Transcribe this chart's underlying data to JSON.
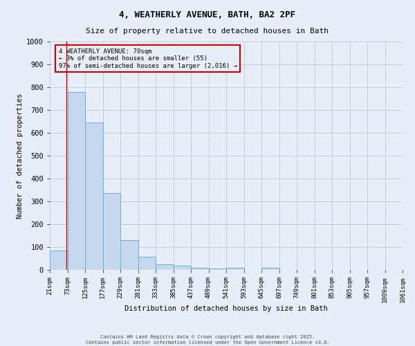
{
  "title_line1": "4, WEATHERLY AVENUE, BATH, BA2 2PF",
  "title_line2": "Size of property relative to detached houses in Bath",
  "xlabel": "Distribution of detached houses by size in Bath",
  "ylabel": "Number of detached properties",
  "bin_labels": [
    "21sqm",
    "73sqm",
    "125sqm",
    "177sqm",
    "229sqm",
    "281sqm",
    "333sqm",
    "385sqm",
    "437sqm",
    "489sqm",
    "541sqm",
    "593sqm",
    "645sqm",
    "697sqm",
    "749sqm",
    "801sqm",
    "853sqm",
    "905sqm",
    "957sqm",
    "1009sqm",
    "1061sqm"
  ],
  "bin_edges": [
    21,
    73,
    125,
    177,
    229,
    281,
    333,
    385,
    437,
    489,
    541,
    593,
    645,
    697,
    749,
    801,
    853,
    905,
    957,
    1009,
    1061
  ],
  "bar_heights": [
    85,
    780,
    645,
    335,
    130,
    57,
    23,
    18,
    8,
    6,
    8,
    0,
    8,
    0,
    0,
    0,
    0,
    0,
    0,
    0
  ],
  "bar_color": "#c5d8ed",
  "bar_edge_color": "#6aaed6",
  "property_size": 70,
  "vline_color": "#cc0000",
  "annotation_line1": "4 WEATHERLY AVENUE: 70sqm",
  "annotation_line2": "← 3% of detached houses are smaller (55)",
  "annotation_line3": "97% of semi-detached houses are larger (2,016) →",
  "annotation_box_color": "#cc0000",
  "ylim": [
    0,
    1000
  ],
  "yticks": [
    0,
    100,
    200,
    300,
    400,
    500,
    600,
    700,
    800,
    900,
    1000
  ],
  "grid_color": "#c0c8d8",
  "background_color": "#e8eef8",
  "footer_line1": "Contains HM Land Registry data © Crown copyright and database right 2025.",
  "footer_line2": "Contains public sector information licensed under the Open Government Licence v3.0."
}
